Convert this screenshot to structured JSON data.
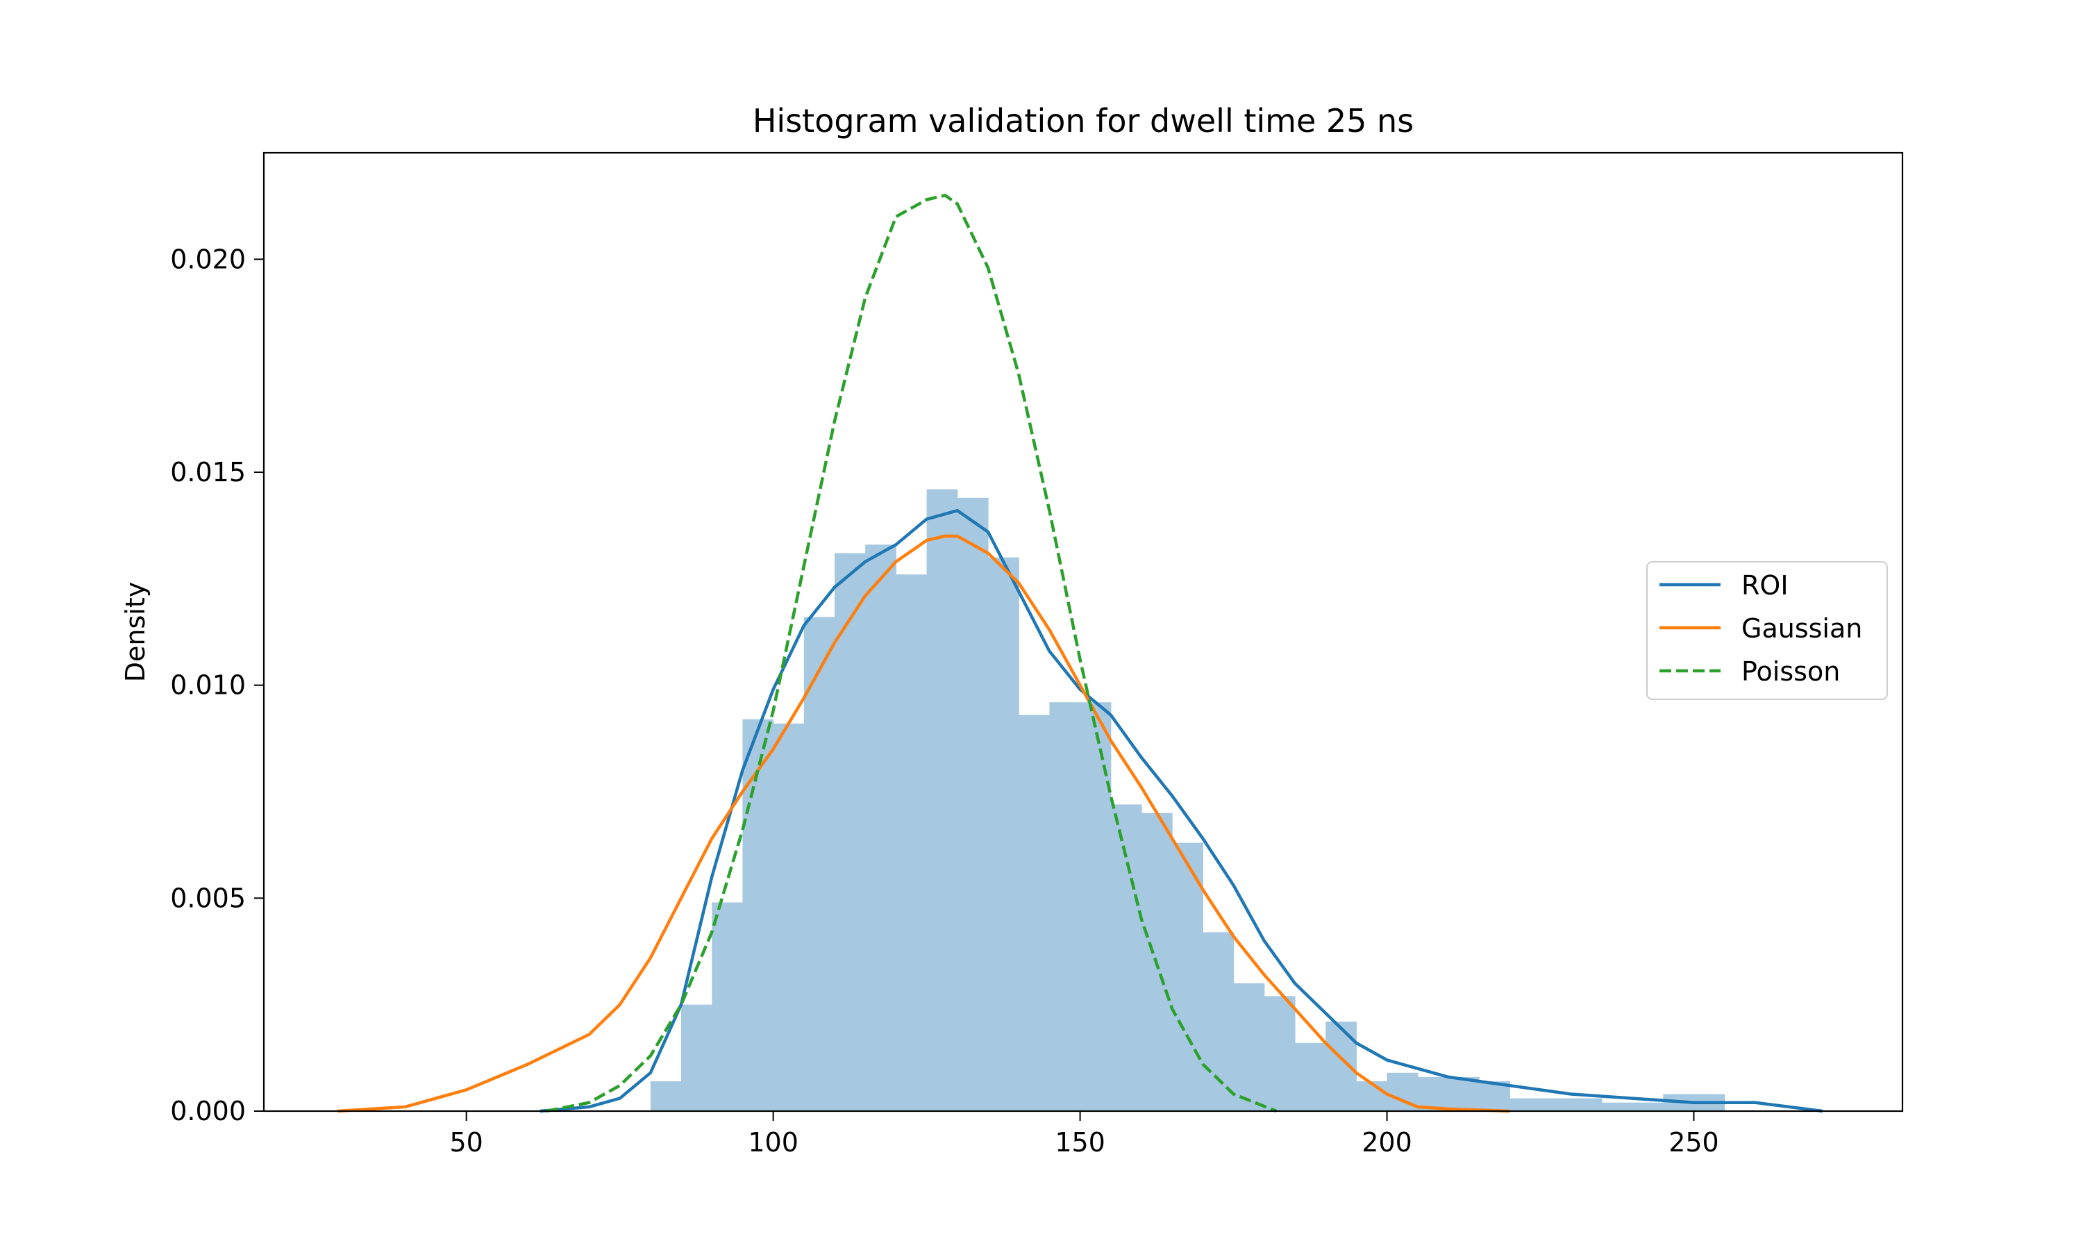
{
  "chart_data": {
    "type": "bar",
    "title": "Histogram validation for dwell time 25 ns",
    "xlabel": "",
    "ylabel": "Density",
    "xlim": [
      17,
      284
    ],
    "ylim": [
      0,
      0.0225
    ],
    "xticks": [
      50,
      100,
      150,
      200,
      250
    ],
    "xtick_labels": [
      "50",
      "100",
      "150",
      "200",
      "250"
    ],
    "yticks": [
      0,
      0.005,
      0.01,
      0.015,
      0.02
    ],
    "ytick_labels": [
      "0.000",
      "0.005",
      "0.010",
      "0.015",
      "0.020"
    ],
    "grid": false,
    "legend_position": "right",
    "legend": [
      "ROI",
      "Gaussian",
      "Poisson"
    ],
    "histogram": {
      "color": "#a6c8e0",
      "bin_edges": [
        80,
        85,
        90,
        95,
        100,
        105,
        110,
        115,
        120,
        125,
        130,
        135,
        140,
        145,
        150,
        155,
        160,
        165,
        170,
        175,
        180,
        185,
        190,
        195,
        200,
        205,
        210,
        215,
        220,
        225,
        230,
        235,
        240,
        245,
        250,
        255
      ],
      "values": [
        0.0007,
        0.0025,
        0.0049,
        0.0092,
        0.0091,
        0.0116,
        0.0131,
        0.0133,
        0.0126,
        0.0146,
        0.0144,
        0.013,
        0.0093,
        0.0096,
        0.0096,
        0.0072,
        0.007,
        0.0063,
        0.0042,
        0.003,
        0.0027,
        0.0016,
        0.0021,
        0.0007,
        0.0009,
        0.0008,
        0.0008,
        0.0007,
        0.0003,
        0.0003,
        0.0003,
        0.0002,
        0.0002,
        0.0004,
        0.0004
      ]
    },
    "series": [
      {
        "name": "ROI",
        "color": "#1f77b4",
        "style": "solid",
        "x": [
          62,
          70,
          75,
          80,
          85,
          90,
          95,
          100,
          105,
          110,
          115,
          120,
          125,
          130,
          135,
          140,
          145,
          150,
          155,
          160,
          165,
          170,
          175,
          180,
          185,
          190,
          195,
          200,
          205,
          210,
          220,
          230,
          240,
          250,
          260,
          271
        ],
        "y": [
          0.0,
          0.0001,
          0.0003,
          0.0009,
          0.0025,
          0.0055,
          0.008,
          0.0099,
          0.0114,
          0.0123,
          0.0129,
          0.0133,
          0.0139,
          0.0141,
          0.0136,
          0.0122,
          0.0108,
          0.0099,
          0.0093,
          0.0083,
          0.0074,
          0.0064,
          0.0053,
          0.004,
          0.003,
          0.0023,
          0.0016,
          0.0012,
          0.001,
          0.0008,
          0.0006,
          0.0004,
          0.0003,
          0.0002,
          0.0002,
          0.0
        ]
      },
      {
        "name": "Gaussian",
        "color": "#ff7f0e",
        "style": "solid",
        "x": [
          29,
          40,
          50,
          60,
          70,
          75,
          80,
          85,
          90,
          95,
          100,
          105,
          110,
          115,
          120,
          125,
          128,
          130,
          135,
          140,
          145,
          150,
          155,
          160,
          165,
          170,
          175,
          180,
          185,
          190,
          195,
          200,
          205,
          210,
          220
        ],
        "y": [
          0.0,
          0.0001,
          0.0005,
          0.0011,
          0.0018,
          0.0025,
          0.0036,
          0.005,
          0.0064,
          0.0075,
          0.0085,
          0.0097,
          0.011,
          0.0121,
          0.0129,
          0.0134,
          0.0135,
          0.0135,
          0.0131,
          0.0124,
          0.0113,
          0.01,
          0.0087,
          0.0076,
          0.0064,
          0.0052,
          0.0041,
          0.0032,
          0.0024,
          0.0016,
          0.0009,
          0.0004,
          0.0001,
          5e-05,
          0.0
        ]
      },
      {
        "name": "Poisson",
        "color": "#2ca02c",
        "style": "dashed",
        "x": [
          63,
          70,
          75,
          80,
          85,
          90,
          95,
          100,
          105,
          110,
          115,
          120,
          125,
          128,
          130,
          135,
          140,
          145,
          150,
          155,
          160,
          165,
          170,
          175,
          182
        ],
        "y": [
          0.0,
          0.0002,
          0.0006,
          0.0013,
          0.0025,
          0.0042,
          0.0066,
          0.0094,
          0.0128,
          0.0162,
          0.0191,
          0.021,
          0.0214,
          0.0215,
          0.0213,
          0.0198,
          0.0173,
          0.0141,
          0.0106,
          0.0074,
          0.0045,
          0.0024,
          0.0011,
          0.0004,
          0.0
        ]
      }
    ]
  }
}
